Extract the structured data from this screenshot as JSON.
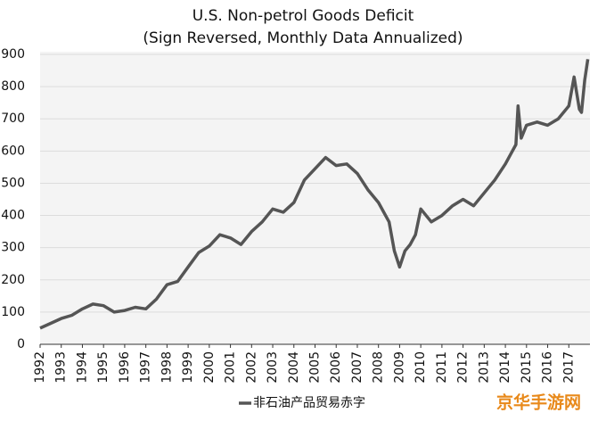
{
  "chart_data": {
    "type": "line",
    "title": "U.S. Non-petrol Goods Deficit",
    "subtitle": "(Sign Reversed, Monthly Data Annualized)",
    "x": [
      1992.0,
      1992.5,
      1993.0,
      1993.5,
      1994.0,
      1994.5,
      1995.0,
      1995.5,
      1996.0,
      1996.5,
      1997.0,
      1997.5,
      1998.0,
      1998.5,
      1999.0,
      1999.5,
      2000.0,
      2000.5,
      2001.0,
      2001.5,
      2002.0,
      2002.5,
      2003.0,
      2003.5,
      2004.0,
      2004.5,
      2005.0,
      2005.5,
      2006.0,
      2006.5,
      2007.0,
      2007.5,
      2008.0,
      2008.5,
      2008.75,
      2009.0,
      2009.25,
      2009.5,
      2009.75,
      2010.0,
      2010.5,
      2011.0,
      2011.5,
      2012.0,
      2012.5,
      2013.0,
      2013.5,
      2014.0,
      2014.25,
      2014.5,
      2014.6,
      2014.75,
      2015.0,
      2015.5,
      2016.0,
      2016.5,
      2017.0,
      2017.25,
      2017.5,
      2017.6,
      2017.75,
      2017.9
    ],
    "series": [
      {
        "name": "非石油产品贸易赤字",
        "color": "#555555",
        "values": [
          50,
          65,
          80,
          90,
          110,
          125,
          120,
          100,
          105,
          115,
          110,
          140,
          185,
          195,
          240,
          285,
          305,
          340,
          330,
          310,
          350,
          380,
          420,
          410,
          440,
          510,
          545,
          580,
          555,
          560,
          530,
          480,
          440,
          380,
          290,
          240,
          290,
          310,
          340,
          420,
          380,
          400,
          430,
          450,
          430,
          470,
          510,
          560,
          590,
          620,
          740,
          640,
          680,
          690,
          680,
          700,
          740,
          830,
          730,
          720,
          820,
          885
        ]
      }
    ],
    "xlim": [
      1992,
      2018
    ],
    "xticks": [
      1992,
      1993,
      1994,
      1995,
      1996,
      1997,
      1998,
      1999,
      2000,
      2001,
      2002,
      2003,
      2004,
      2005,
      2006,
      2007,
      2008,
      2009,
      2010,
      2011,
      2012,
      2013,
      2014,
      2015,
      2016,
      2017
    ],
    "ylim": [
      0,
      900
    ],
    "yticks": [
      0,
      100,
      200,
      300,
      400,
      500,
      600,
      700,
      800,
      900
    ],
    "grid": true,
    "watermark": "京华手游网"
  }
}
